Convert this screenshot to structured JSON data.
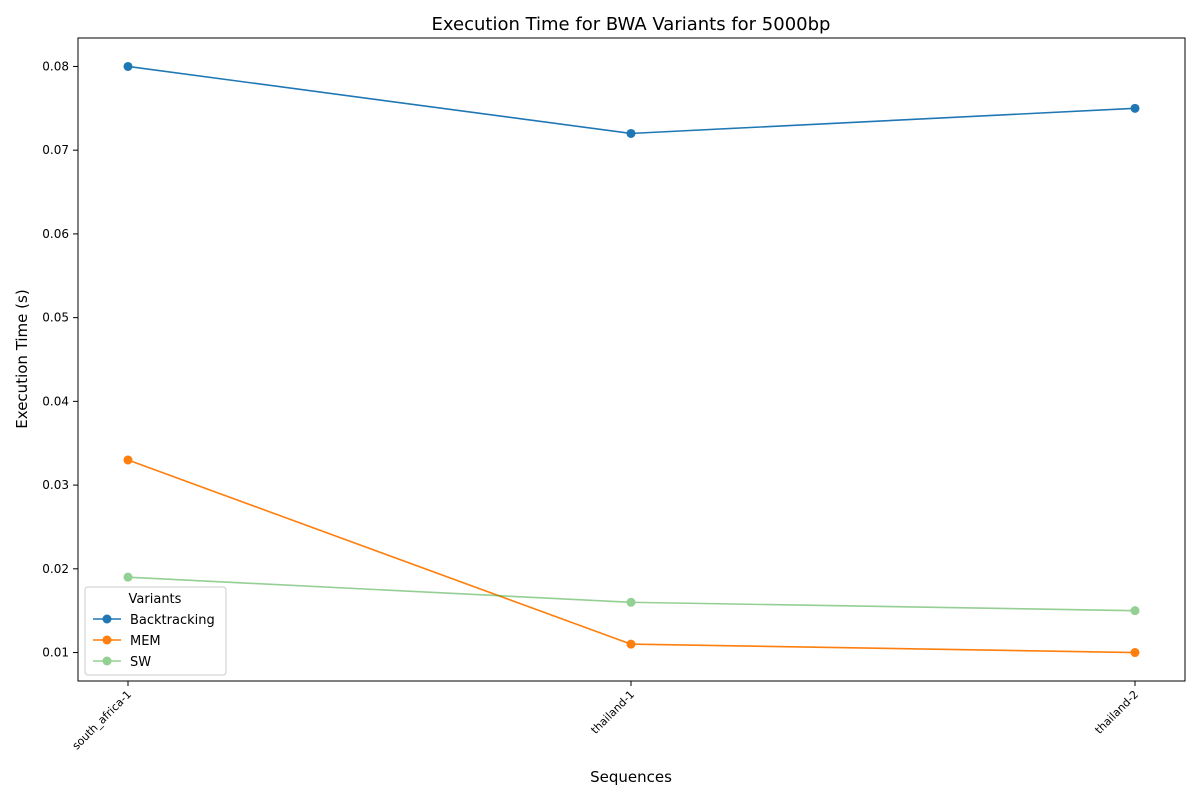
{
  "chart_data": {
    "type": "line",
    "title": "Execution Time for BWA Variants for 5000bp",
    "xlabel": "Sequences",
    "ylabel": "Execution Time (s)",
    "categories": [
      "south_africa-1",
      "thailand-1",
      "thailand-2"
    ],
    "ylim": [
      0.0066,
      0.0834
    ],
    "yticks": [
      0.01,
      0.02,
      0.03,
      0.04,
      0.05,
      0.06,
      0.07,
      0.08
    ],
    "ytick_labels": [
      "0.01",
      "0.02",
      "0.03",
      "0.04",
      "0.05",
      "0.06",
      "0.07",
      "0.08"
    ],
    "grid": false,
    "legend": {
      "title": "Variants",
      "placement": "lower-left"
    },
    "series": [
      {
        "name": "Backtracking",
        "color": "#1f77b4",
        "opacity": 1.0,
        "values": [
          0.08,
          0.072,
          0.075
        ]
      },
      {
        "name": "MEM",
        "color": "#ff7f0e",
        "opacity": 1.0,
        "values": [
          0.033,
          0.011,
          0.01
        ]
      },
      {
        "name": "SW",
        "color": "#2ca02c",
        "opacity": 0.5,
        "values": [
          0.019,
          0.016,
          0.015
        ]
      }
    ]
  }
}
